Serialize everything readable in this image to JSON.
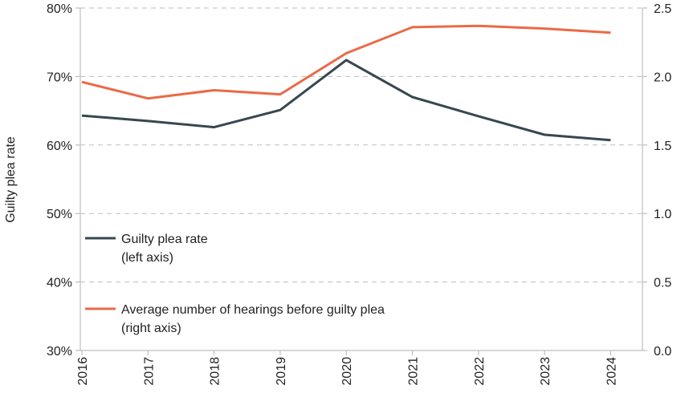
{
  "chart_data": {
    "type": "line",
    "x": [
      "2016",
      "2017",
      "2018",
      "2019",
      "2020",
      "2021",
      "2022",
      "2023",
      "2024"
    ],
    "ylabel": "Guilty plea rate",
    "y_left": {
      "range": [
        0.3,
        0.8
      ],
      "ticks": [
        0.3,
        0.4,
        0.5,
        0.6,
        0.7,
        0.8
      ],
      "tick_labels": [
        "30%",
        "40%",
        "50%",
        "60%",
        "70%",
        "80%"
      ]
    },
    "y_right": {
      "range": [
        0.0,
        2.5
      ],
      "ticks": [
        0.0,
        0.5,
        1.0,
        1.5,
        2.0,
        2.5
      ],
      "tick_labels": [
        "0.0",
        "0.5",
        "1.0",
        "1.5",
        "2.0",
        "2.5"
      ]
    },
    "grid": true,
    "legend_position": "left",
    "series": [
      {
        "name_line1": "Guilty plea rate",
        "name_line2": "(left axis)",
        "axis": "left",
        "color": "#37474f",
        "values": [
          0.643,
          0.635,
          0.626,
          0.651,
          0.724,
          0.67,
          0.642,
          0.615,
          0.607
        ]
      },
      {
        "name_line1": "Average number of hearings before guilty plea",
        "name_line2": "(right axis)",
        "axis": "right",
        "color": "#ea6a47",
        "values": [
          1.96,
          1.84,
          1.9,
          1.87,
          2.17,
          2.36,
          2.37,
          2.35,
          2.32
        ]
      }
    ]
  }
}
